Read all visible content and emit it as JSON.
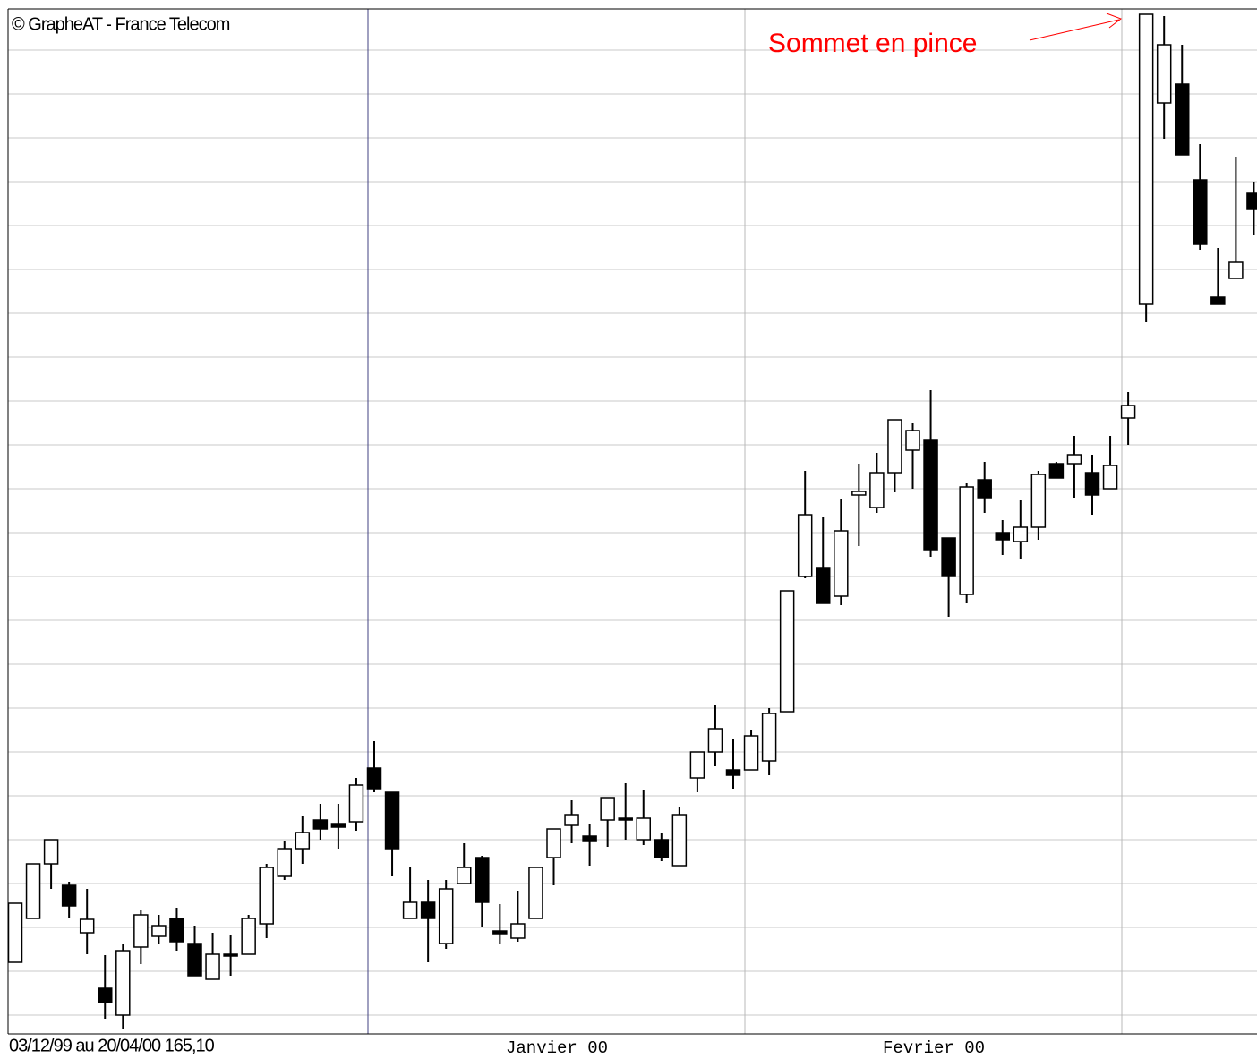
{
  "chart_data": {
    "type": "candlestick",
    "title": "© GrapheAT - France Telecom",
    "footer": "03/12/99 au 20/04/00  165,10",
    "month_labels": [
      "Janvier 00",
      "Fevrier 00"
    ],
    "annotation": "Sommet en pince",
    "annotation_color": "#ff0000",
    "up_color": "#ffffff",
    "down_color": "#000000",
    "grid": true,
    "ylim": [
      45,
      1190
    ],
    "yticks": [
      66,
      115,
      164,
      213,
      262,
      311,
      360,
      409,
      458,
      507,
      556,
      605,
      654,
      703,
      752,
      801,
      850,
      899,
      948,
      997,
      1046,
      1095,
      1144
    ],
    "categories": [
      null,
      null,
      null,
      null,
      null,
      null,
      null,
      null,
      null,
      null,
      null,
      null,
      null,
      null,
      null,
      null,
      null,
      null,
      null,
      null,
      null,
      null,
      null,
      null,
      null,
      null,
      null,
      null,
      null,
      null,
      null,
      null,
      null,
      null,
      null,
      null,
      null,
      null,
      null,
      null,
      null,
      null,
      null,
      null,
      null,
      null,
      null,
      null,
      null,
      null,
      null,
      null,
      null,
      null,
      null,
      null,
      null,
      null,
      null,
      null,
      null,
      null,
      null,
      null,
      null,
      null,
      null,
      null,
      null,
      null
    ],
    "open": [
      125,
      174,
      235,
      211,
      158,
      96,
      66,
      142,
      154,
      174,
      146,
      106,
      134,
      134,
      168,
      221,
      252,
      284,
      280,
      282,
      342,
      315,
      174,
      192,
      146,
      213,
      242,
      160,
      152,
      174,
      242,
      278,
      266,
      284,
      286,
      262,
      262,
      233,
      331,
      360,
      340,
      340,
      350,
      405,
      556,
      566,
      534,
      647,
      633,
      672,
      697,
      709,
      599,
      536,
      664,
      605,
      595,
      611,
      682,
      682,
      672,
      654,
      733,
      860,
      1085,
      1106,
      999,
      868,
      889,
      984
    ],
    "high": [
      191,
      235,
      262,
      215,
      207,
      133,
      145,
      183,
      178,
      186,
      166,
      158,
      156,
      178,
      235,
      260,
      288,
      302,
      302,
      331,
      372,
      315,
      231,
      217,
      217,
      258,
      244,
      190,
      205,
      231,
      274,
      306,
      280,
      309,
      325,
      317,
      270,
      298,
      360,
      413,
      374,
      384,
      409,
      540,
      674,
      623,
      643,
      682,
      694,
      731,
      727,
      764,
      599,
      660,
      684,
      619,
      642,
      674,
      684,
      713,
      692,
      713,
      762,
      1184,
      1182,
      1150,
      1039,
      923,
      1025,
      997
    ],
    "low": [
      125,
      174,
      207,
      174,
      134,
      62,
      50,
      123,
      146,
      138,
      110,
      106,
      110,
      134,
      152,
      217,
      235,
      262,
      252,
      272,
      315,
      221,
      174,
      125,
      140,
      213,
      164,
      146,
      148,
      174,
      211,
      258,
      233,
      254,
      262,
      256,
      238,
      233,
      315,
      344,
      319,
      340,
      334,
      405,
      554,
      526,
      524,
      590,
      627,
      650,
      654,
      578,
      511,
      526,
      627,
      580,
      576,
      597,
      666,
      644,
      625,
      654,
      703,
      840,
      1045,
      1027,
      921,
      860,
      889,
      937
    ],
    "close": [
      191,
      235,
      262,
      188,
      173,
      80,
      138,
      178,
      166,
      148,
      110,
      134,
      132,
      174,
      231,
      252,
      270,
      274,
      276,
      323,
      319,
      252,
      192,
      174,
      207,
      231,
      192,
      157,
      168,
      231,
      274,
      290,
      260,
      309,
      284,
      286,
      242,
      290,
      360,
      386,
      334,
      378,
      403,
      540,
      625,
      526,
      607,
      651,
      672,
      731,
      719,
      586,
      556,
      656,
      644,
      597,
      611,
      670,
      666,
      692,
      647,
      680,
      747,
      1184,
      1150,
      1027,
      927,
      860,
      907,
      966
    ]
  }
}
